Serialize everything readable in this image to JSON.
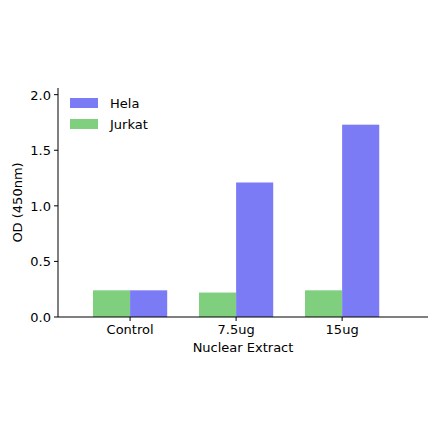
{
  "chart_data": {
    "type": "bar",
    "x_label": "Nuclear Extract",
    "y_label": "OD (450nm)",
    "categories": [
      "Control",
      "7.5ug",
      "15ug"
    ],
    "series": [
      {
        "name": "Jurkat",
        "color": "#7fcf7f",
        "values": [
          0.24,
          0.22,
          0.24
        ]
      },
      {
        "name": "Hela",
        "color": "#7b7bf5",
        "values": [
          0.24,
          1.21,
          1.73
        ]
      }
    ],
    "ylim": [
      0,
      2.06
    ],
    "yticks": [
      {
        "value": 0,
        "label": "0.0"
      },
      0.5,
      {
        "value": 1,
        "label": "1.0"
      },
      1.5,
      {
        "value": 2,
        "label": "2.0"
      }
    ],
    "legend": "upper left",
    "grid": false
  }
}
